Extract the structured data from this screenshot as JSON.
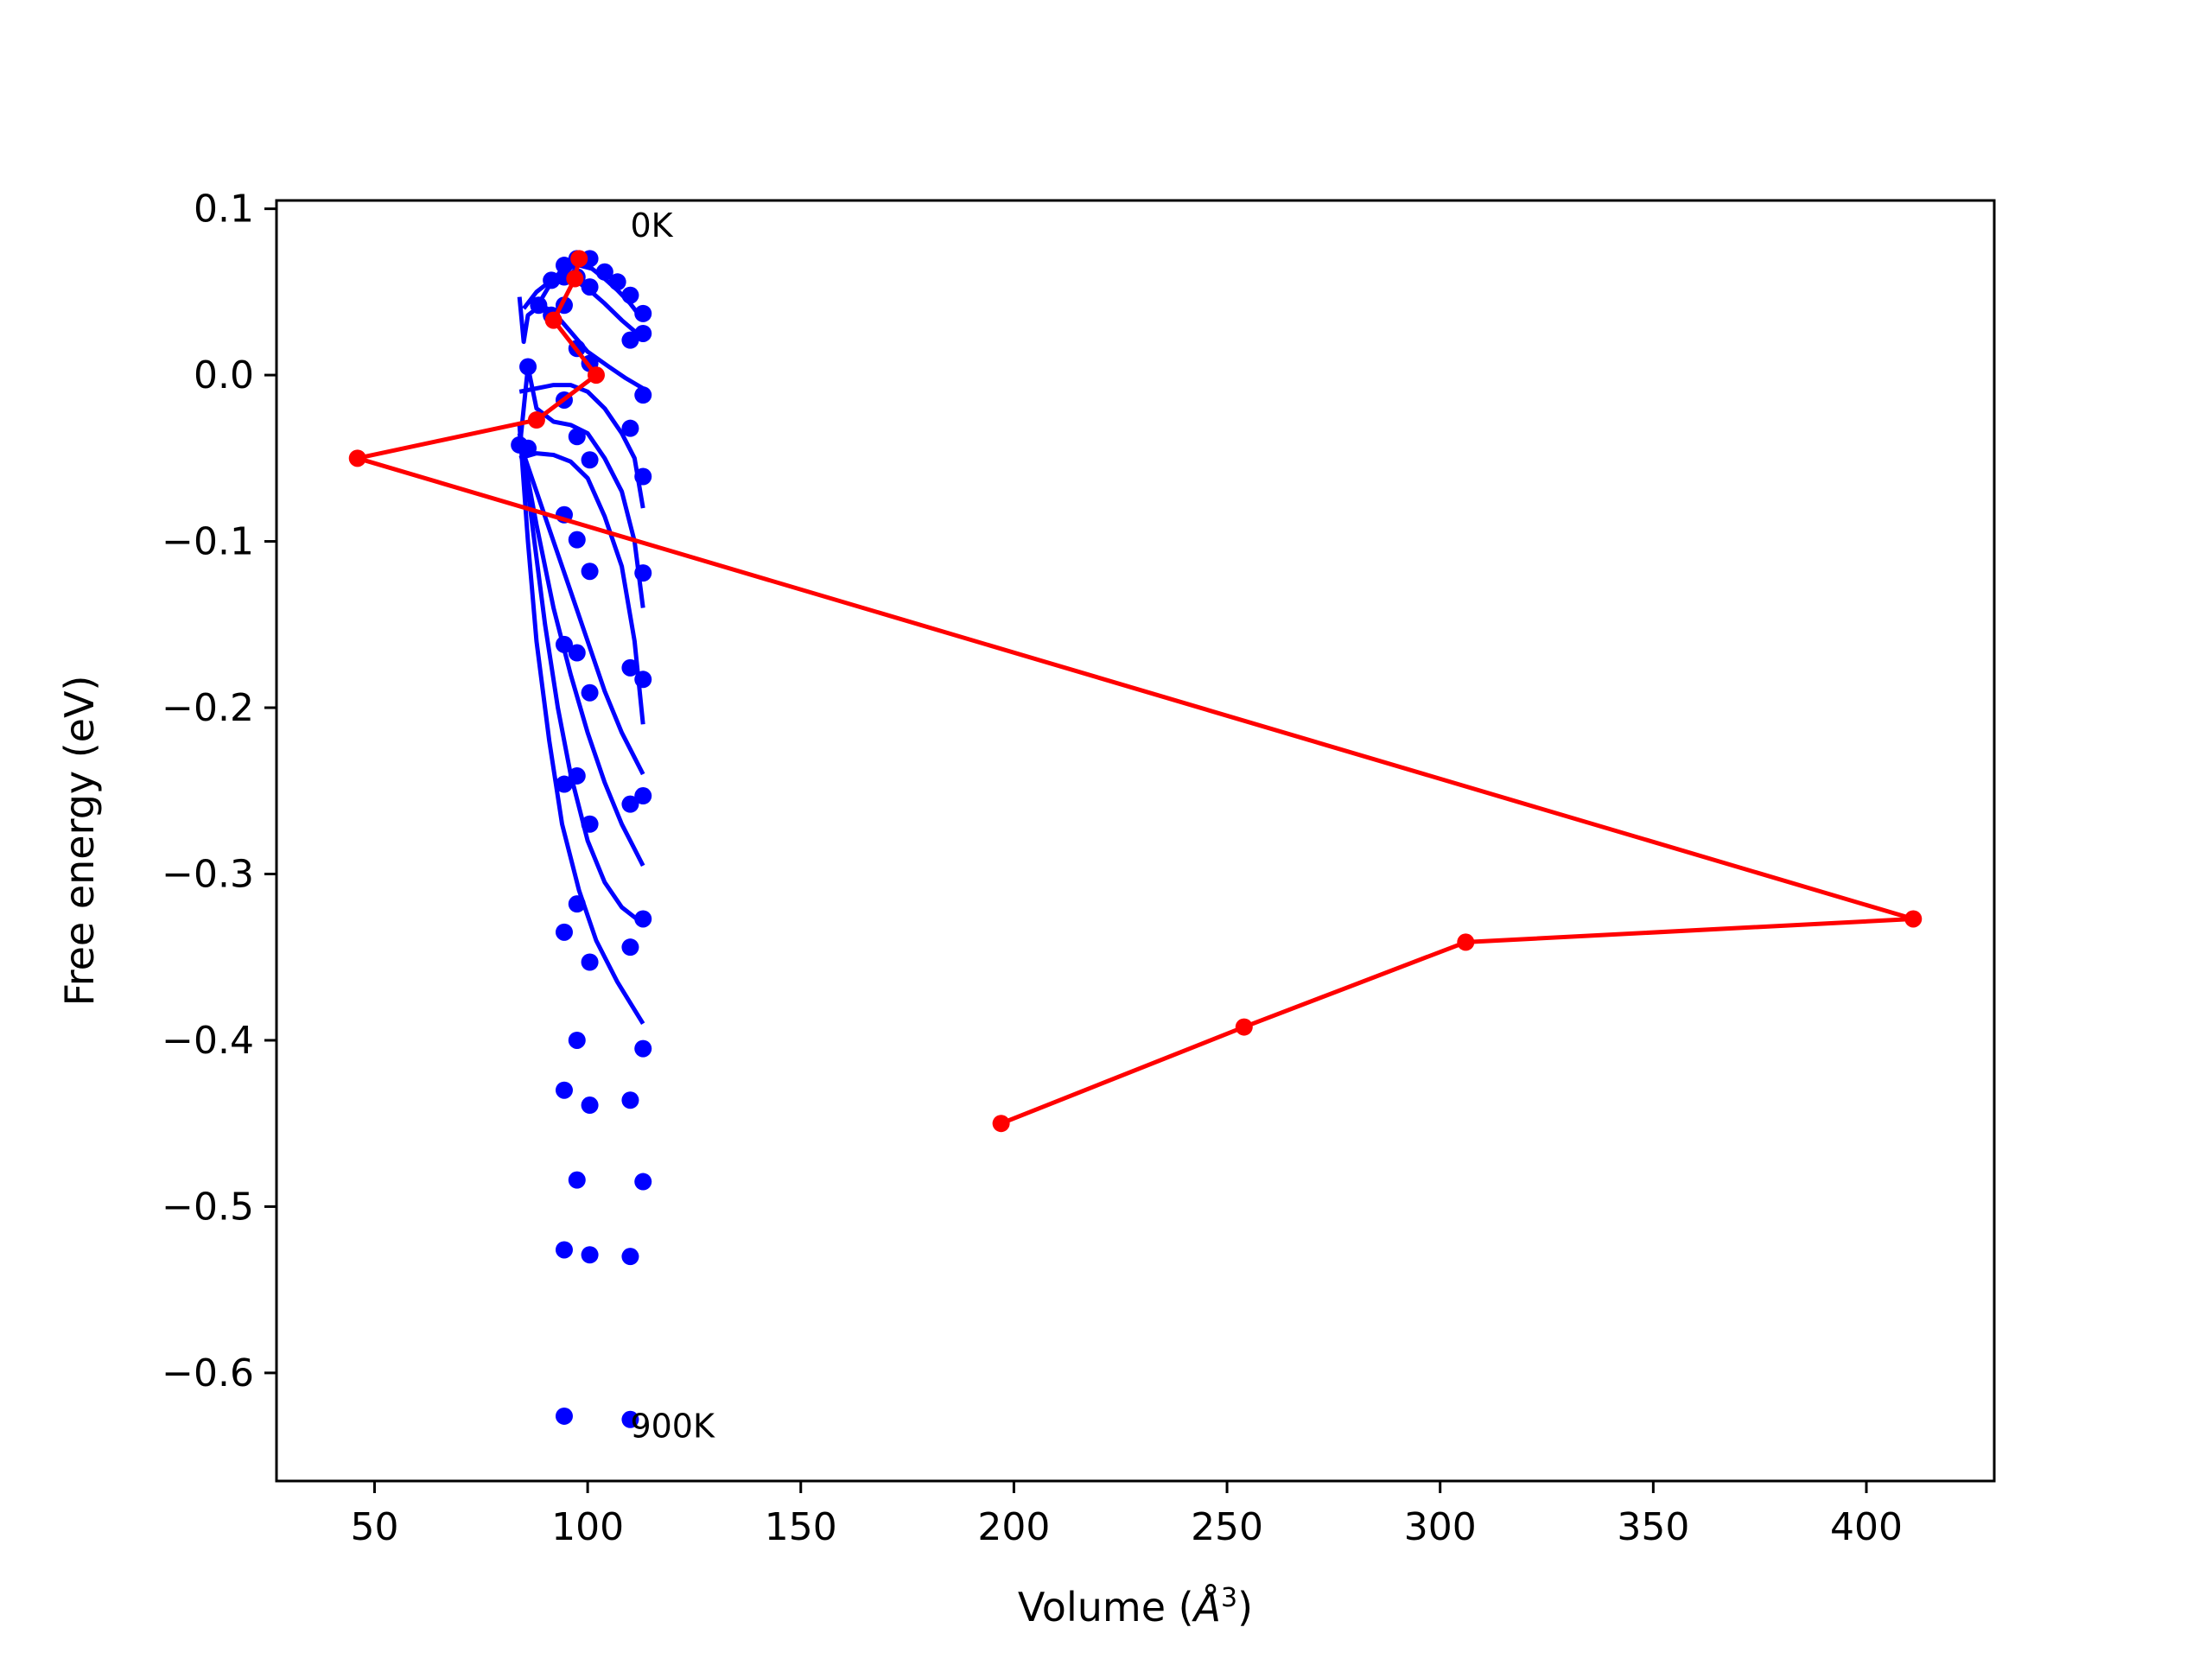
{
  "chart_data": {
    "type": "line",
    "xlabel": "Volume ($\\AA^3$)",
    "xlabel_main": "Volume (",
    "xlabel_unit": "Å",
    "xlabel_exp": "3",
    "xlabel_close": ")",
    "ylabel": "Free energy (eV)",
    "xlim": [
      27,
      430
    ],
    "ylim": [
      -0.665,
      0.105
    ],
    "xticks": [
      50,
      100,
      150,
      200,
      250,
      300,
      350,
      400
    ],
    "yticks": [
      0.1,
      0.0,
      -0.1,
      -0.2,
      -0.3,
      -0.4,
      -0.5,
      -0.6
    ],
    "ytick_labels": [
      "0.1",
      "0.0",
      "−0.1",
      "−0.2",
      "−0.3",
      "−0.4",
      "−0.5",
      "−0.6"
    ],
    "annotations": [
      {
        "text": "0K",
        "x": 110,
        "y": 0.09
      },
      {
        "text": "900K",
        "x": 110,
        "y": -0.632
      }
    ],
    "colors": {
      "points": "#0000ff",
      "fit": "#0000ff",
      "minima": "#ff0000"
    },
    "points": [
      {
        "x": 94.5,
        "y": 0.066
      },
      {
        "x": 97.5,
        "y": 0.07
      },
      {
        "x": 100.5,
        "y": 0.07
      },
      {
        "x": 104,
        "y": 0.062
      },
      {
        "x": 107,
        "y": 0.056
      },
      {
        "x": 110,
        "y": 0.048
      },
      {
        "x": 113,
        "y": 0.037
      },
      {
        "x": 91.5,
        "y": 0.057
      },
      {
        "x": 94.5,
        "y": 0.059
      },
      {
        "x": 97.5,
        "y": 0.059
      },
      {
        "x": 100.5,
        "y": 0.053
      },
      {
        "x": 110,
        "y": 0.021
      },
      {
        "x": 113,
        "y": 0.025
      },
      {
        "x": 88.5,
        "y": 0.042
      },
      {
        "x": 91.5,
        "y": 0.036
      },
      {
        "x": 94.5,
        "y": 0.042
      },
      {
        "x": 97.5,
        "y": 0.016
      },
      {
        "x": 100.5,
        "y": 0.007
      },
      {
        "x": 86,
        "y": 0.005
      },
      {
        "x": 94.5,
        "y": -0.015
      },
      {
        "x": 110,
        "y": -0.032
      },
      {
        "x": 113,
        "y": -0.012
      },
      {
        "x": 84,
        "y": -0.042
      },
      {
        "x": 86,
        "y": -0.044
      },
      {
        "x": 97.5,
        "y": -0.037
      },
      {
        "x": 100.5,
        "y": -0.051
      },
      {
        "x": 113,
        "y": -0.061
      },
      {
        "x": 94.5,
        "y": -0.084
      },
      {
        "x": 97.5,
        "y": -0.099
      },
      {
        "x": 100.5,
        "y": -0.118
      },
      {
        "x": 113,
        "y": -0.119
      },
      {
        "x": 94.5,
        "y": -0.162
      },
      {
        "x": 97.5,
        "y": -0.167
      },
      {
        "x": 100.5,
        "y": -0.191
      },
      {
        "x": 110,
        "y": -0.176
      },
      {
        "x": 113,
        "y": -0.183
      },
      {
        "x": 94.5,
        "y": -0.246
      },
      {
        "x": 97.5,
        "y": -0.241
      },
      {
        "x": 100.5,
        "y": -0.27
      },
      {
        "x": 110,
        "y": -0.258
      },
      {
        "x": 113,
        "y": -0.253
      },
      {
        "x": 94.5,
        "y": -0.335
      },
      {
        "x": 97.5,
        "y": -0.318
      },
      {
        "x": 100.5,
        "y": -0.353
      },
      {
        "x": 110,
        "y": -0.344
      },
      {
        "x": 113,
        "y": -0.327
      },
      {
        "x": 97.5,
        "y": -0.4
      },
      {
        "x": 113,
        "y": -0.405
      },
      {
        "x": 94.5,
        "y": -0.43
      },
      {
        "x": 100.5,
        "y": -0.439
      },
      {
        "x": 110,
        "y": -0.436
      },
      {
        "x": 97.5,
        "y": -0.484
      },
      {
        "x": 113,
        "y": -0.485
      },
      {
        "x": 94.5,
        "y": -0.526
      },
      {
        "x": 100.5,
        "y": -0.529
      },
      {
        "x": 110,
        "y": -0.53
      },
      {
        "x": 94.5,
        "y": -0.626
      },
      {
        "x": 110,
        "y": -0.628
      }
    ],
    "fit_curves": [
      [
        [
          89,
          0.045
        ],
        [
          92,
          0.058
        ],
        [
          95,
          0.064
        ],
        [
          98,
          0.066
        ],
        [
          101,
          0.064
        ],
        [
          104,
          0.058
        ],
        [
          107,
          0.051
        ],
        [
          110,
          0.043
        ],
        [
          113,
          0.033
        ]
      ],
      [
        [
          85,
          0.04
        ],
        [
          88,
          0.05
        ],
        [
          91,
          0.056
        ],
        [
          94,
          0.058
        ],
        [
          97,
          0.057
        ],
        [
          100,
          0.052
        ],
        [
          104,
          0.043
        ],
        [
          108,
          0.033
        ],
        [
          113,
          0.022
        ]
      ],
      [
        [
          84,
          0.047
        ],
        [
          85,
          0.02
        ],
        [
          86,
          0.036
        ],
        [
          89,
          0.042
        ],
        [
          92,
          0.038
        ],
        [
          96,
          0.026
        ],
        [
          100,
          0.014
        ],
        [
          105,
          0.005
        ],
        [
          109,
          -0.002
        ],
        [
          113,
          -0.008
        ]
      ],
      [
        [
          84,
          -0.01
        ],
        [
          88,
          -0.008
        ],
        [
          92,
          -0.006
        ],
        [
          96,
          -0.006
        ],
        [
          100,
          -0.01
        ],
        [
          104,
          -0.02
        ],
        [
          108,
          -0.035
        ],
        [
          111,
          -0.05
        ],
        [
          113,
          -0.08
        ]
      ],
      [
        [
          84,
          -0.045
        ],
        [
          86,
          0.005
        ],
        [
          88,
          -0.02
        ],
        [
          92,
          -0.028
        ],
        [
          96,
          -0.03
        ],
        [
          100,
          -0.035
        ],
        [
          104,
          -0.05
        ],
        [
          108,
          -0.07
        ],
        [
          111,
          -0.1
        ],
        [
          113,
          -0.14
        ]
      ],
      [
        [
          84,
          -0.05
        ],
        [
          88,
          -0.047
        ],
        [
          92,
          -0.048
        ],
        [
          96,
          -0.052
        ],
        [
          100,
          -0.062
        ],
        [
          104,
          -0.085
        ],
        [
          108,
          -0.115
        ],
        [
          111,
          -0.16
        ],
        [
          113,
          -0.21
        ]
      ],
      [
        [
          84,
          -0.04
        ],
        [
          88,
          -0.07
        ],
        [
          92,
          -0.1
        ],
        [
          96,
          -0.13
        ],
        [
          100,
          -0.16
        ],
        [
          104,
          -0.19
        ],
        [
          108,
          -0.215
        ],
        [
          111,
          -0.23
        ],
        [
          113,
          -0.24
        ]
      ],
      [
        [
          84,
          -0.035
        ],
        [
          88,
          -0.09
        ],
        [
          92,
          -0.14
        ],
        [
          96,
          -0.18
        ],
        [
          100,
          -0.215
        ],
        [
          104,
          -0.245
        ],
        [
          108,
          -0.27
        ],
        [
          111,
          -0.285
        ],
        [
          113,
          -0.295
        ]
      ],
      [
        [
          84,
          -0.03
        ],
        [
          87,
          -0.09
        ],
        [
          90,
          -0.15
        ],
        [
          93,
          -0.2
        ],
        [
          96,
          -0.24
        ],
        [
          100,
          -0.28
        ],
        [
          104,
          -0.305
        ],
        [
          108,
          -0.32
        ],
        [
          113,
          -0.33
        ]
      ],
      [
        [
          84,
          -0.03
        ],
        [
          86,
          -0.1
        ],
        [
          88,
          -0.16
        ],
        [
          91,
          -0.22
        ],
        [
          94,
          -0.27
        ],
        [
          98,
          -0.31
        ],
        [
          102,
          -0.34
        ],
        [
          107,
          -0.365
        ],
        [
          113,
          -0.39
        ]
      ]
    ],
    "minima_series": [
      {
        "x": 98,
        "y": 0.07
      },
      {
        "x": 97,
        "y": 0.058
      },
      {
        "x": 92,
        "y": 0.033
      },
      {
        "x": 102,
        "y": 0.0
      },
      {
        "x": 88,
        "y": -0.027
      },
      {
        "x": 46,
        "y": -0.05
      },
      {
        "x": 411,
        "y": -0.327
      },
      {
        "x": 306,
        "y": -0.341
      },
      {
        "x": 254,
        "y": -0.392
      },
      {
        "x": 197,
        "y": -0.45
      }
    ]
  }
}
